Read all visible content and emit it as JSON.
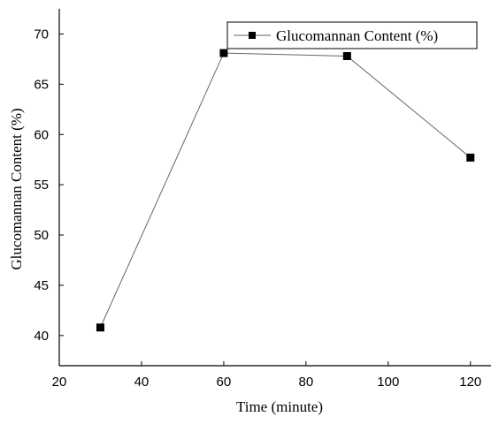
{
  "chart_data": {
    "type": "line",
    "title": "",
    "xlabel": "Time (minute)",
    "ylabel": "Glucomannan Content (%)",
    "xlim": [
      20,
      125
    ],
    "ylim": [
      37,
      72.5
    ],
    "xticks": [
      20,
      40,
      60,
      80,
      100,
      120
    ],
    "yticks": [
      40,
      45,
      50,
      55,
      60,
      65,
      70
    ],
    "grid": false,
    "legend_position": "top-right",
    "series": [
      {
        "name": "Glucomannan Content (%)",
        "marker": "square",
        "color": "#000000",
        "x": [
          30,
          60,
          90,
          120
        ],
        "y": [
          40.8,
          68.1,
          67.8,
          57.7
        ]
      }
    ]
  }
}
